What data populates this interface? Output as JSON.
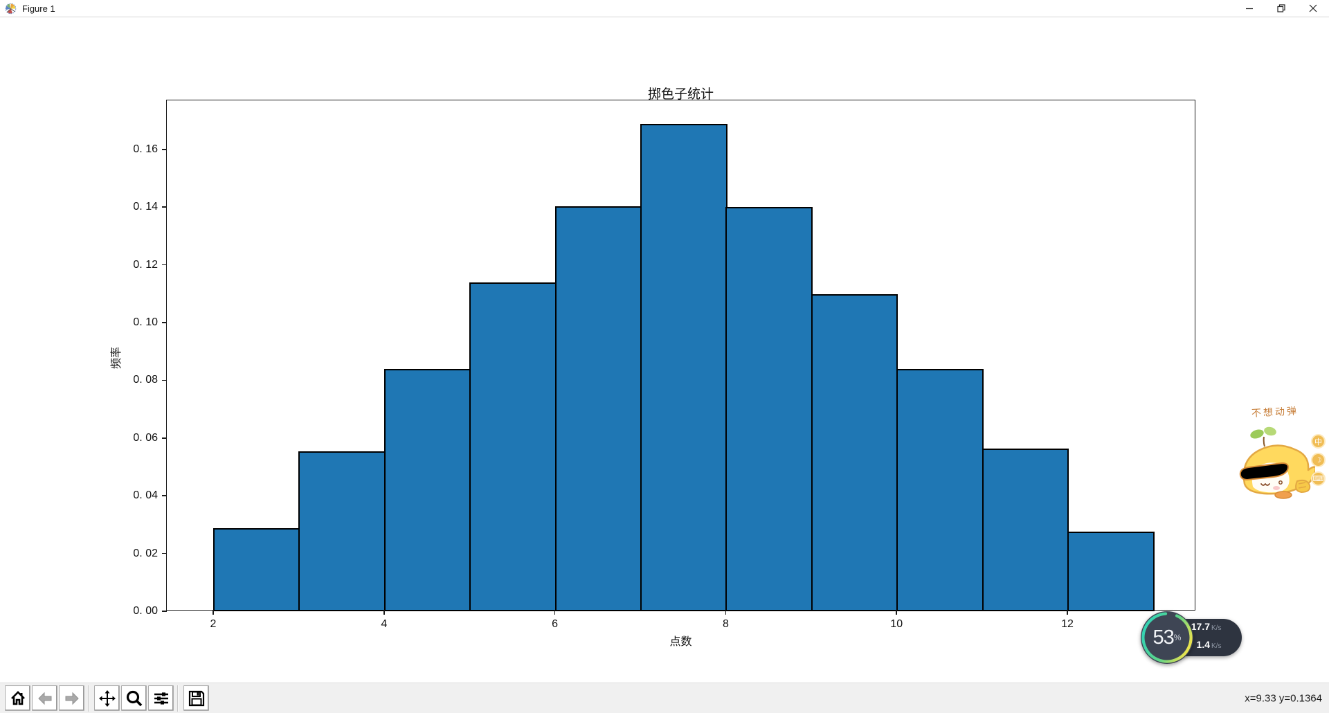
{
  "window": {
    "title": "Figure 1",
    "controls": {
      "minimize": "minimize",
      "restore": "restore",
      "close": "close"
    }
  },
  "chart_data": {
    "type": "bar",
    "title": "掷色子统计",
    "xlabel": "点数",
    "ylabel": "频率",
    "bin_edges": [
      2,
      3,
      4,
      5,
      6,
      7,
      8,
      9,
      10,
      11,
      12,
      13
    ],
    "categories": [
      "2-3",
      "3-4",
      "4-5",
      "5-6",
      "6-7",
      "7-8",
      "8-9",
      "9-10",
      "10-11",
      "11-12",
      "12-13"
    ],
    "values": [
      0.0281,
      0.0548,
      0.0834,
      0.1132,
      0.1396,
      0.1682,
      0.1394,
      0.1092,
      0.0832,
      0.0557,
      0.0269
    ],
    "x_tick_values": [
      2,
      4,
      6,
      8,
      10,
      12
    ],
    "x_tick_labels": [
      "2",
      "4",
      "6",
      "8",
      "10",
      "12"
    ],
    "y_tick_values": [
      0.0,
      0.02,
      0.04,
      0.06,
      0.08,
      0.1,
      0.12,
      0.14,
      0.16
    ],
    "y_tick_labels": [
      "0. 00",
      "0. 02",
      "0. 04",
      "0. 06",
      "0. 08",
      "0. 10",
      "0. 12",
      "0. 14",
      "0. 16"
    ],
    "xlim": [
      1.457,
      13.507
    ],
    "ylim": [
      0,
      0.177
    ],
    "grid": false,
    "legend": null,
    "bar_color": "#1f77b4",
    "edge_color": "#000000"
  },
  "toolbar": {
    "buttons": [
      "home",
      "back",
      "forward",
      "pan",
      "zoom",
      "configure-subplots",
      "save"
    ],
    "status": "x=9.33 y=0.1364"
  },
  "overlay_net": {
    "percent": "53",
    "percent_symbol": "%",
    "up_value": "17.7",
    "up_unit": "K/s",
    "down_value": "1.4",
    "down_unit": "K/s",
    "up_color": "#4f9cf7",
    "down_color": "#46c05b",
    "ring_colors": [
      "#35d3b2",
      "#e9e34f"
    ]
  },
  "sticker": {
    "caption": "不想动弹",
    "icons": [
      "中",
      "☽",
      "⌨"
    ],
    "accent_color": "#c8803c"
  }
}
